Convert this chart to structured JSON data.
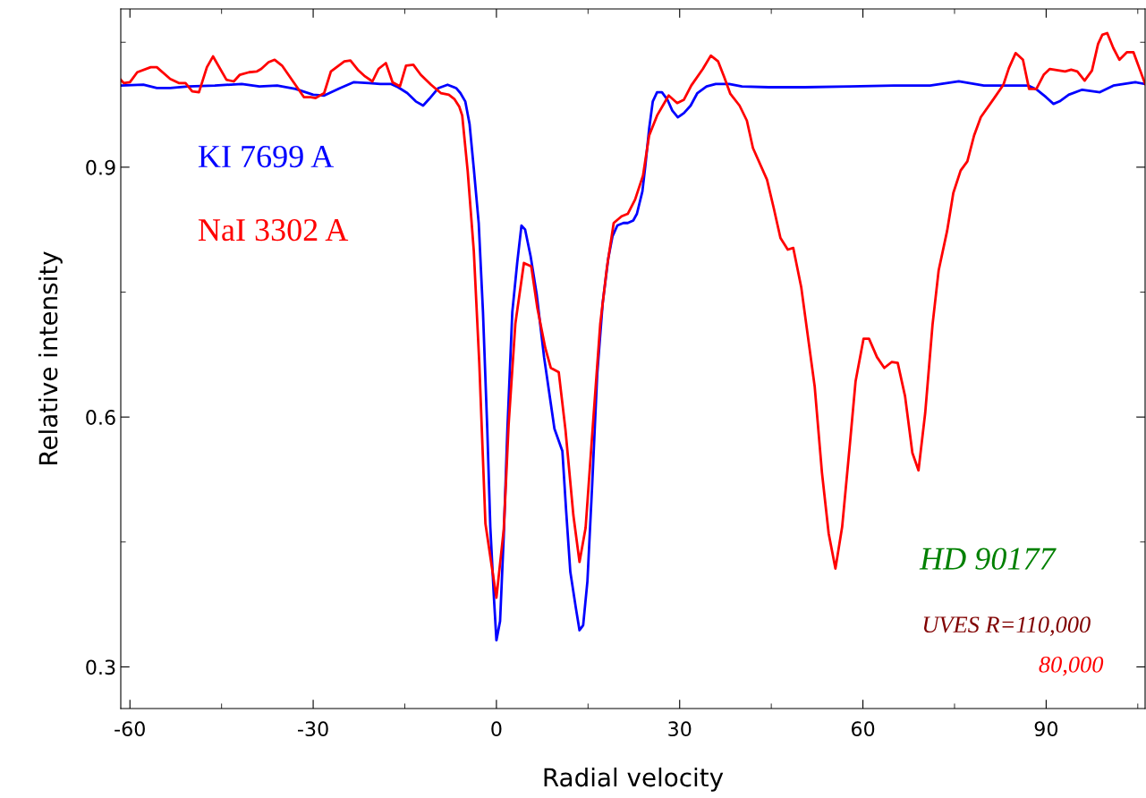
{
  "chart_data": {
    "type": "line",
    "xlabel": "Radial velocity",
    "ylabel": "Relative intensity",
    "xlim": [
      -61.5,
      106.2
    ],
    "ylim": [
      0.25,
      1.09
    ],
    "xticks": [
      -60,
      -30,
      0,
      30,
      60,
      90
    ],
    "yticks": [
      0.3,
      0.6,
      0.9
    ],
    "grid": false,
    "legend": false,
    "marker": "none",
    "line_style": "solid",
    "series": [
      {
        "name": "KI 7699 A",
        "color": "#0000ff",
        "x": [
          -61.5,
          -57.8,
          -55.6,
          -53.4,
          -50.5,
          -46.1,
          -41.7,
          -38.8,
          -35.9,
          -32.9,
          -30.0,
          -28.2,
          -25.6,
          -23.4,
          -20.9,
          -19.0,
          -17.3,
          -16.1,
          -14.6,
          -13.2,
          -12.0,
          -11.0,
          -9.5,
          -8.0,
          -6.6,
          -5.9,
          -5.1,
          -4.4,
          -3.7,
          -2.9,
          -2.2,
          -1.5,
          -1.0,
          -0.4,
          0.0,
          0.6,
          1.2,
          1.8,
          2.6,
          3.4,
          4.1,
          4.7,
          5.6,
          6.6,
          7.8,
          9.5,
          10.8,
          11.4,
          12.1,
          13.0,
          13.6,
          14.2,
          14.9,
          15.7,
          16.5,
          17.4,
          18.3,
          19.0,
          19.8,
          20.8,
          21.5,
          22.4,
          23.0,
          23.9,
          24.4,
          25.0,
          25.6,
          26.3,
          27.1,
          28.0,
          28.8,
          29.7,
          30.7,
          31.8,
          32.9,
          34.4,
          35.9,
          38.1,
          40.2,
          44.6,
          50.5,
          57.8,
          65.1,
          71.0,
          75.7,
          79.8,
          87.1,
          88.5,
          90.0,
          91.2,
          92.2,
          93.7,
          95.9,
          98.8,
          101.0,
          104.6,
          106.2
        ],
        "values": [
          0.998,
          0.999,
          0.995,
          0.995,
          0.997,
          0.998,
          1.0,
          0.997,
          0.998,
          0.994,
          0.987,
          0.986,
          0.995,
          1.002,
          1.001,
          1.0,
          1.0,
          0.996,
          0.989,
          0.979,
          0.974,
          0.982,
          0.995,
          0.999,
          0.995,
          0.989,
          0.979,
          0.952,
          0.898,
          0.833,
          0.726,
          0.586,
          0.468,
          0.382,
          0.332,
          0.355,
          0.457,
          0.586,
          0.726,
          0.785,
          0.83,
          0.825,
          0.793,
          0.747,
          0.672,
          0.586,
          0.559,
          0.489,
          0.414,
          0.371,
          0.344,
          0.35,
          0.403,
          0.522,
          0.651,
          0.737,
          0.79,
          0.817,
          0.83,
          0.833,
          0.833,
          0.836,
          0.844,
          0.871,
          0.903,
          0.946,
          0.979,
          0.99,
          0.99,
          0.981,
          0.968,
          0.96,
          0.965,
          0.974,
          0.989,
          0.997,
          1.0,
          1.0,
          0.997,
          0.996,
          0.996,
          0.997,
          0.998,
          0.998,
          1.003,
          0.998,
          0.998,
          0.993,
          0.984,
          0.976,
          0.979,
          0.987,
          0.993,
          0.99,
          0.998,
          1.002,
          1.0
        ]
      },
      {
        "name": "NaI 3302 A",
        "color": "#ff0000",
        "x": [
          -61.5,
          -61.0,
          -60.0,
          -58.8,
          -56.6,
          -55.6,
          -53.4,
          -52.0,
          -50.9,
          -49.8,
          -48.7,
          -47.4,
          -46.4,
          -44.2,
          -43.0,
          -42.0,
          -40.5,
          -39.2,
          -38.5,
          -37.3,
          -36.3,
          -35.1,
          -31.5,
          -30.4,
          -29.6,
          -28.2,
          -27.1,
          -24.9,
          -23.9,
          -22.7,
          -21.5,
          -20.3,
          -19.3,
          -18.1,
          -17.0,
          -15.8,
          -14.8,
          -13.6,
          -12.4,
          -10.7,
          -9.1,
          -7.8,
          -6.9,
          -6.1,
          -5.6,
          -4.7,
          -3.7,
          -2.8,
          -1.8,
          0.0,
          1.2,
          2.0,
          3.1,
          4.5,
          5.7,
          6.7,
          8.0,
          8.9,
          10.2,
          11.3,
          12.6,
          13.6,
          14.6,
          15.8,
          17.0,
          18.1,
          19.2,
          20.5,
          21.5,
          22.7,
          24.0,
          25.0,
          26.3,
          28.2,
          29.6,
          30.7,
          31.9,
          33.8,
          35.1,
          36.3,
          37.3,
          38.3,
          39.8,
          41.0,
          42.0,
          44.3,
          45.4,
          46.5,
          47.7,
          48.6,
          49.9,
          52.1,
          53.3,
          54.4,
          55.5,
          56.6,
          57.8,
          58.8,
          60.1,
          61.0,
          62.3,
          63.5,
          64.7,
          65.7,
          66.9,
          68.1,
          69.1,
          70.2,
          71.4,
          72.4,
          73.8,
          74.8,
          76.0,
          77.1,
          78.2,
          79.3,
          81.5,
          83.0,
          83.9,
          85.0,
          86.2,
          87.2,
          88.4,
          89.6,
          90.6,
          93.1,
          94.1,
          95.1,
          96.3,
          97.5,
          98.5,
          99.2,
          100.0,
          101.0,
          102.0,
          103.2,
          104.3,
          105.4,
          106.2
        ],
        "values": [
          1.005,
          1.001,
          1.002,
          1.014,
          1.02,
          1.02,
          1.006,
          1.001,
          1.001,
          0.991,
          0.99,
          1.02,
          1.033,
          1.005,
          1.003,
          1.011,
          1.014,
          1.015,
          1.018,
          1.026,
          1.029,
          1.022,
          0.984,
          0.984,
          0.983,
          0.989,
          1.015,
          1.027,
          1.028,
          1.017,
          1.009,
          1.003,
          1.018,
          1.025,
          1.002,
          0.997,
          1.022,
          1.023,
          1.011,
          0.999,
          0.989,
          0.987,
          0.982,
          0.973,
          0.962,
          0.895,
          0.799,
          0.664,
          0.472,
          0.383,
          0.465,
          0.591,
          0.712,
          0.785,
          0.781,
          0.731,
          0.683,
          0.659,
          0.654,
          0.585,
          0.482,
          0.426,
          0.467,
          0.591,
          0.712,
          0.78,
          0.833,
          0.841,
          0.844,
          0.861,
          0.89,
          0.938,
          0.962,
          0.986,
          0.977,
          0.981,
          0.998,
          1.018,
          1.034,
          1.027,
          1.008,
          0.988,
          0.974,
          0.956,
          0.923,
          0.885,
          0.851,
          0.815,
          0.801,
          0.803,
          0.756,
          0.637,
          0.533,
          0.46,
          0.418,
          0.468,
          0.562,
          0.643,
          0.694,
          0.694,
          0.672,
          0.659,
          0.666,
          0.665,
          0.625,
          0.557,
          0.536,
          0.605,
          0.711,
          0.776,
          0.824,
          0.869,
          0.896,
          0.907,
          0.938,
          0.96,
          0.983,
          0.999,
          1.019,
          1.037,
          1.029,
          0.994,
          0.994,
          1.011,
          1.018,
          1.015,
          1.017,
          1.015,
          1.004,
          1.016,
          1.048,
          1.059,
          1.061,
          1.043,
          1.029,
          1.038,
          1.038,
          1.016,
          1.0
        ]
      }
    ],
    "annotations": [
      "HD 90177",
      "UVES R=110,000",
      "80,000"
    ]
  }
}
